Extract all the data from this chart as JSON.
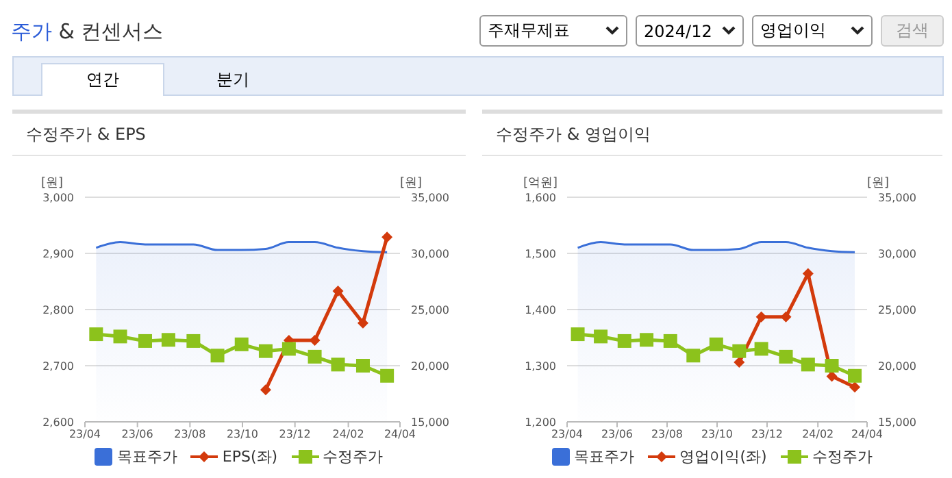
{
  "chart_data": [
    {
      "type": "other",
      "title": "주가 & 컨센서스",
      "annotations": [
        "주재무제표",
        "2024/12",
        "영업이익",
        "검색",
        "연간",
        "분기"
      ]
    },
    {
      "type": "line",
      "title": "수정주가 & EPS",
      "ylabel": "[원]",
      "y2label": "[원]",
      "x": [
        "2023-04-14",
        "2023-05-12",
        "2023-06-10",
        "2023-07-07",
        "2023-08-05",
        "2023-09-02",
        "2023-09-30",
        "2023-10-28",
        "2023-11-24",
        "2023-12-24",
        "2024-01-20",
        "2024-02-18",
        "2024-03-17"
      ],
      "series": [
        {
          "name": "목표주가",
          "type": "area",
          "axis": "y2",
          "color": "#3a6fd8",
          "values": [
            30500,
            31000,
            30800,
            30800,
            30800,
            30300,
            30300,
            30400,
            31000,
            31000,
            30500,
            30200,
            30100
          ]
        },
        {
          "name": "EPS(좌)",
          "type": "line",
          "color": "#d33a0c",
          "marker": "diamond",
          "values": [
            null,
            null,
            null,
            null,
            null,
            null,
            null,
            2657,
            2745,
            2745,
            2833,
            2776,
            2929
          ]
        },
        {
          "name": "수정주가",
          "type": "line",
          "axis": "y2",
          "color": "#8cc21c",
          "marker": "square",
          "values": [
            22800,
            22600,
            22200,
            22300,
            22200,
            20900,
            21900,
            21300,
            21500,
            20800,
            20100,
            20000,
            19100
          ]
        }
      ],
      "xlim": [
        "2023-04-01",
        "2024-04-01"
      ],
      "xticks": [
        {
          "value": "2023-04-01",
          "label": "23/04"
        },
        {
          "value": "2023-06-01",
          "label": "23/06"
        },
        {
          "value": "2023-08-01",
          "label": "23/08"
        },
        {
          "value": "2023-10-01",
          "label": "23/10"
        },
        {
          "value": "2023-12-01",
          "label": "23/12"
        },
        {
          "value": "2024-02-01",
          "label": "24/02"
        },
        {
          "value": "2024-04-01",
          "label": "24/04"
        }
      ],
      "ylim": [
        2600,
        3000
      ],
      "yticks": [
        {
          "value": 2600,
          "label": "2,600"
        },
        {
          "value": 2700,
          "label": "2,700"
        },
        {
          "value": 2800,
          "label": "2,800"
        },
        {
          "value": 2900,
          "label": "2,900"
        },
        {
          "value": 3000,
          "label": "3,000"
        }
      ],
      "y2lim": [
        15000,
        35000
      ],
      "y2ticks": [
        {
          "value": 15000,
          "label": "15,000"
        },
        {
          "value": 20000,
          "label": "20,000"
        },
        {
          "value": 25000,
          "label": "25,000"
        },
        {
          "value": 30000,
          "label": "30,000"
        },
        {
          "value": 35000,
          "label": "35,000"
        }
      ],
      "grid": "y",
      "legend": "bottom"
    },
    {
      "type": "line",
      "title": "수정주가 & 영업이익",
      "ylabel": "[억원]",
      "y2label": "[원]",
      "x": [
        "2023-04-14",
        "2023-05-12",
        "2023-06-10",
        "2023-07-07",
        "2023-08-05",
        "2023-09-02",
        "2023-09-30",
        "2023-10-28",
        "2023-11-24",
        "2023-12-24",
        "2024-01-20",
        "2024-02-18",
        "2024-03-17"
      ],
      "series": [
        {
          "name": "목표주가",
          "type": "area",
          "axis": "y2",
          "color": "#3a6fd8",
          "values": [
            30500,
            31000,
            30800,
            30800,
            30800,
            30300,
            30300,
            30400,
            31000,
            31000,
            30500,
            30200,
            30100
          ]
        },
        {
          "name": "영업이익(좌)",
          "type": "line",
          "color": "#d33a0c",
          "marker": "diamond",
          "values": [
            null,
            null,
            null,
            null,
            null,
            null,
            null,
            1306,
            1387,
            1387,
            1464,
            1281,
            1262
          ]
        },
        {
          "name": "수정주가",
          "type": "line",
          "axis": "y2",
          "color": "#8cc21c",
          "marker": "square",
          "values": [
            22800,
            22600,
            22200,
            22300,
            22200,
            20900,
            21900,
            21300,
            21500,
            20800,
            20100,
            20000,
            19100
          ]
        }
      ],
      "xlim": [
        "2023-04-01",
        "2024-04-01"
      ],
      "xticks": [
        {
          "value": "2023-04-01",
          "label": "23/04"
        },
        {
          "value": "2023-06-01",
          "label": "23/06"
        },
        {
          "value": "2023-08-01",
          "label": "23/08"
        },
        {
          "value": "2023-10-01",
          "label": "23/10"
        },
        {
          "value": "2023-12-01",
          "label": "23/12"
        },
        {
          "value": "2024-02-01",
          "label": "24/02"
        },
        {
          "value": "2024-04-01",
          "label": "24/04"
        }
      ],
      "ylim": [
        1200,
        1600
      ],
      "yticks": [
        {
          "value": 1200,
          "label": "1,200"
        },
        {
          "value": 1300,
          "label": "1,300"
        },
        {
          "value": 1400,
          "label": "1,400"
        },
        {
          "value": 1500,
          "label": "1,500"
        },
        {
          "value": 1600,
          "label": "1,600"
        }
      ],
      "y2lim": [
        15000,
        35000
      ],
      "y2ticks": [
        {
          "value": 15000,
          "label": "15,000"
        },
        {
          "value": 20000,
          "label": "20,000"
        },
        {
          "value": 25000,
          "label": "25,000"
        },
        {
          "value": 30000,
          "label": "30,000"
        },
        {
          "value": 35000,
          "label": "35,000"
        }
      ],
      "grid": "y",
      "legend": "bottom"
    }
  ]
}
